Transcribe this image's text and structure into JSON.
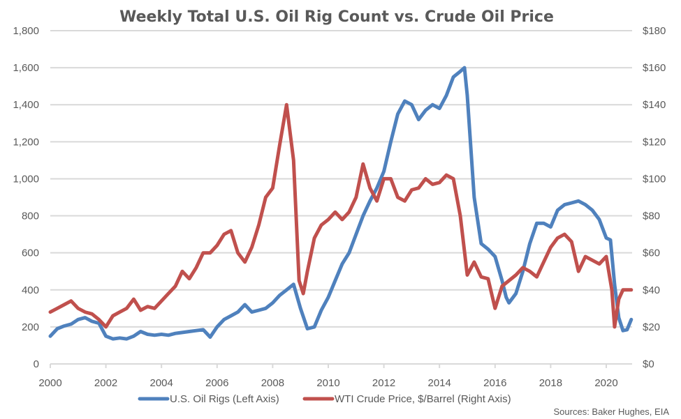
{
  "chart_data": {
    "type": "line",
    "title": "Weekly Total U.S. Oil Rig Count vs. Crude Oil Price",
    "source": "Sources: Baker Hughes, EIA",
    "x_ticks": [
      "2000",
      "2002",
      "2004",
      "2006",
      "2008",
      "2010",
      "2012",
      "2014",
      "2016",
      "2018",
      "2020"
    ],
    "xlim": [
      2000,
      2021.1
    ],
    "y_left": {
      "ylim": [
        0,
        1800
      ],
      "ticks": [
        "0",
        "200",
        "400",
        "600",
        "800",
        "1,000",
        "1,200",
        "1,400",
        "1,600",
        "1,800"
      ]
    },
    "y_right": {
      "ylim": [
        0,
        180
      ],
      "ticks": [
        "$0",
        "$20",
        "$40",
        "$60",
        "$80",
        "$100",
        "$120",
        "$140",
        "$160",
        "$180"
      ]
    },
    "grid": true,
    "legend_position": "bottom",
    "series": [
      {
        "name": "U.S. Oil Rigs (Left Axis)",
        "axis": "left",
        "color": "#4F81BD",
        "x": [
          2000.0,
          2000.25,
          2000.5,
          2000.75,
          2001.0,
          2001.25,
          2001.5,
          2001.75,
          2002.0,
          2002.25,
          2002.5,
          2002.75,
          2003.0,
          2003.25,
          2003.5,
          2003.75,
          2004.0,
          2004.25,
          2004.5,
          2004.75,
          2005.0,
          2005.25,
          2005.5,
          2005.75,
          2006.0,
          2006.25,
          2006.5,
          2006.75,
          2007.0,
          2007.25,
          2007.5,
          2007.75,
          2008.0,
          2008.25,
          2008.5,
          2008.75,
          2009.0,
          2009.25,
          2009.5,
          2009.75,
          2010.0,
          2010.25,
          2010.5,
          2010.75,
          2011.0,
          2011.25,
          2011.5,
          2011.75,
          2012.0,
          2012.25,
          2012.5,
          2012.75,
          2013.0,
          2013.25,
          2013.5,
          2013.75,
          2014.0,
          2014.25,
          2014.5,
          2014.75,
          2014.9,
          2015.0,
          2015.25,
          2015.5,
          2015.75,
          2016.0,
          2016.25,
          2016.4,
          2016.5,
          2016.75,
          2017.0,
          2017.25,
          2017.5,
          2017.75,
          2018.0,
          2018.25,
          2018.5,
          2018.75,
          2019.0,
          2019.25,
          2019.5,
          2019.75,
          2020.0,
          2020.15,
          2020.3,
          2020.45,
          2020.6,
          2020.75,
          2020.9
        ],
        "values": [
          150,
          190,
          205,
          215,
          240,
          250,
          230,
          220,
          150,
          135,
          140,
          135,
          150,
          175,
          160,
          155,
          160,
          155,
          165,
          170,
          175,
          180,
          185,
          145,
          200,
          240,
          260,
          280,
          320,
          280,
          290,
          300,
          330,
          370,
          400,
          430,
          300,
          190,
          200,
          290,
          360,
          450,
          540,
          600,
          700,
          800,
          880,
          950,
          1040,
          1200,
          1350,
          1420,
          1400,
          1320,
          1370,
          1400,
          1380,
          1450,
          1550,
          1580,
          1600,
          1450,
          900,
          650,
          620,
          580,
          450,
          360,
          330,
          380,
          500,
          650,
          760,
          760,
          740,
          830,
          860,
          870,
          880,
          860,
          830,
          780,
          680,
          670,
          430,
          250,
          180,
          185,
          240
        ]
      },
      {
        "name": "WTI Crude Price, $/Barrel (Right Axis)",
        "axis": "right",
        "color": "#C0504D",
        "x": [
          2000.0,
          2000.25,
          2000.5,
          2000.75,
          2001.0,
          2001.25,
          2001.5,
          2001.75,
          2002.0,
          2002.25,
          2002.5,
          2002.75,
          2003.0,
          2003.25,
          2003.5,
          2003.75,
          2004.0,
          2004.25,
          2004.5,
          2004.75,
          2005.0,
          2005.25,
          2005.5,
          2005.75,
          2006.0,
          2006.25,
          2006.5,
          2006.75,
          2007.0,
          2007.25,
          2007.5,
          2007.75,
          2008.0,
          2008.25,
          2008.5,
          2008.75,
          2008.95,
          2009.1,
          2009.25,
          2009.5,
          2009.75,
          2010.0,
          2010.25,
          2010.5,
          2010.75,
          2011.0,
          2011.25,
          2011.5,
          2011.75,
          2012.0,
          2012.25,
          2012.5,
          2012.75,
          2013.0,
          2013.25,
          2013.5,
          2013.75,
          2014.0,
          2014.25,
          2014.5,
          2014.75,
          2015.0,
          2015.25,
          2015.5,
          2015.75,
          2016.0,
          2016.25,
          2016.5,
          2016.75,
          2017.0,
          2017.25,
          2017.5,
          2017.75,
          2018.0,
          2018.25,
          2018.5,
          2018.75,
          2019.0,
          2019.25,
          2019.5,
          2019.75,
          2020.0,
          2020.2,
          2020.3,
          2020.45,
          2020.6,
          2020.75,
          2020.9
        ],
        "values": [
          28,
          30,
          32,
          34,
          30,
          28,
          27,
          24,
          20,
          26,
          28,
          30,
          35,
          29,
          31,
          30,
          34,
          38,
          42,
          50,
          46,
          52,
          60,
          60,
          64,
          70,
          72,
          60,
          55,
          63,
          75,
          90,
          95,
          118,
          140,
          110,
          45,
          38,
          50,
          68,
          75,
          78,
          82,
          78,
          82,
          90,
          108,
          95,
          88,
          100,
          100,
          90,
          88,
          94,
          95,
          100,
          97,
          98,
          102,
          100,
          80,
          48,
          55,
          47,
          46,
          30,
          42,
          45,
          48,
          52,
          50,
          47,
          55,
          63,
          68,
          70,
          66,
          50,
          58,
          56,
          54,
          58,
          40,
          20,
          35,
          40,
          40,
          40
        ]
      }
    ]
  }
}
